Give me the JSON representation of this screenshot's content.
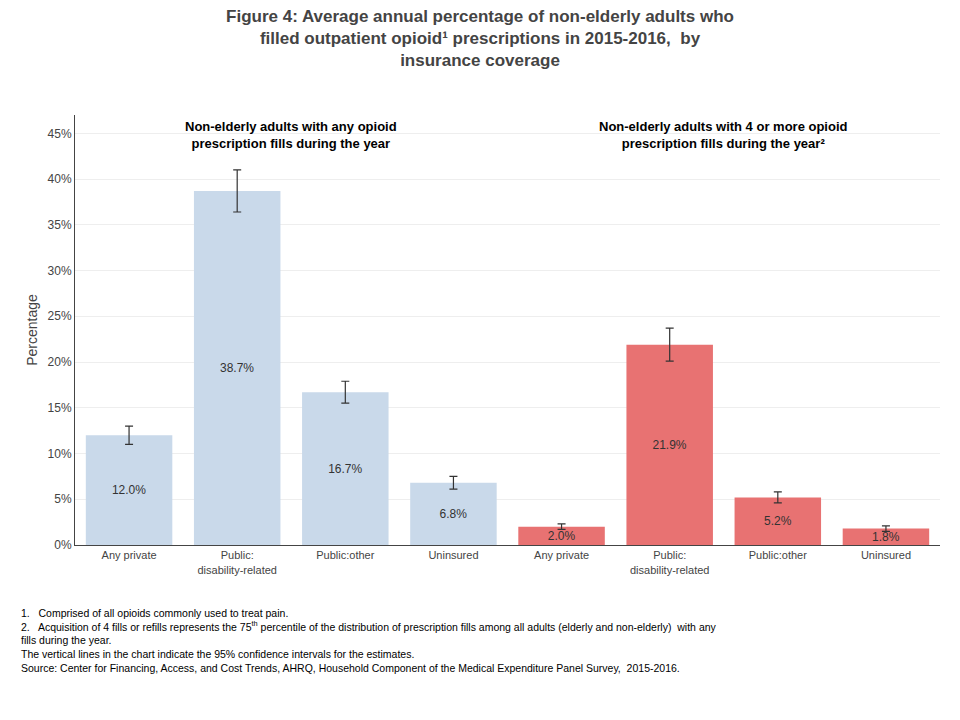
{
  "chart_data": {
    "type": "bar",
    "title": "Figure 4: Average annual percentage of non-elderly adults who\nfilled outpatient opioid¹ prescriptions in 2015-2016,  by\ninsurance coverage",
    "categories": [
      "Any private",
      "Public:\ndisability-related",
      "Public:other",
      "Uninsured",
      "Any private",
      "Public:\ndisability-related",
      "Public:other",
      "Uninsured"
    ],
    "series": [
      {
        "title": "Non-elderly adults with any opioid\nprescription fills during the year",
        "color": "#c9d9ea",
        "values": [
          12.0,
          38.7,
          16.7,
          6.8,
          null,
          null,
          null,
          null
        ],
        "errors": [
          1.0,
          2.3,
          1.2,
          0.7,
          null,
          null,
          null,
          null
        ],
        "value_labels": [
          "12.0%",
          "38.7%",
          "16.7%",
          "6.8%",
          null,
          null,
          null,
          null
        ]
      },
      {
        "title": "Non-elderly adults with 4 or more opioid\nprescription fills during the year²",
        "color": "#e87272",
        "values": [
          null,
          null,
          null,
          null,
          2.0,
          21.9,
          5.2,
          1.8
        ],
        "errors": [
          null,
          null,
          null,
          null,
          0.3,
          1.8,
          0.6,
          0.3
        ],
        "value_labels": [
          null,
          null,
          null,
          null,
          "2.0%",
          "21.9%",
          "5.2%",
          "1.8%"
        ]
      }
    ],
    "ylabel": "Percentage",
    "ylim": [
      0,
      47
    ],
    "yticks": [
      {
        "value": 0,
        "label": "0%"
      },
      {
        "value": 5,
        "label": "5%"
      },
      {
        "value": 10,
        "label": "10%"
      },
      {
        "value": 15,
        "label": "15%"
      },
      {
        "value": 20,
        "label": "20%"
      },
      {
        "value": 25,
        "label": "25%"
      },
      {
        "value": 30,
        "label": "30%"
      },
      {
        "value": 35,
        "label": "35%"
      },
      {
        "value": 40,
        "label": "40%"
      },
      {
        "value": 45,
        "label": "45%"
      }
    ],
    "grid": true,
    "data_labels": true,
    "footnotes": [
      "1.   Comprised of all opioids commonly used to treat pain.",
      {
        "text": "2.   Acquisition of 4 fills or refills represents the 75",
        "superscript": "th",
        "after": " percentile of the distribution of prescription fills among all adults (elderly and non-elderly)  with any"
      },
      "fills during the year.",
      "The vertical lines in the chart indicate the 95% confidence intervals for the estimates.",
      "Source: Center for Financing, Access, and Cost Trends, AHRQ, Household Component of the Medical Expenditure Panel Survey,  2015-2016."
    ]
  }
}
